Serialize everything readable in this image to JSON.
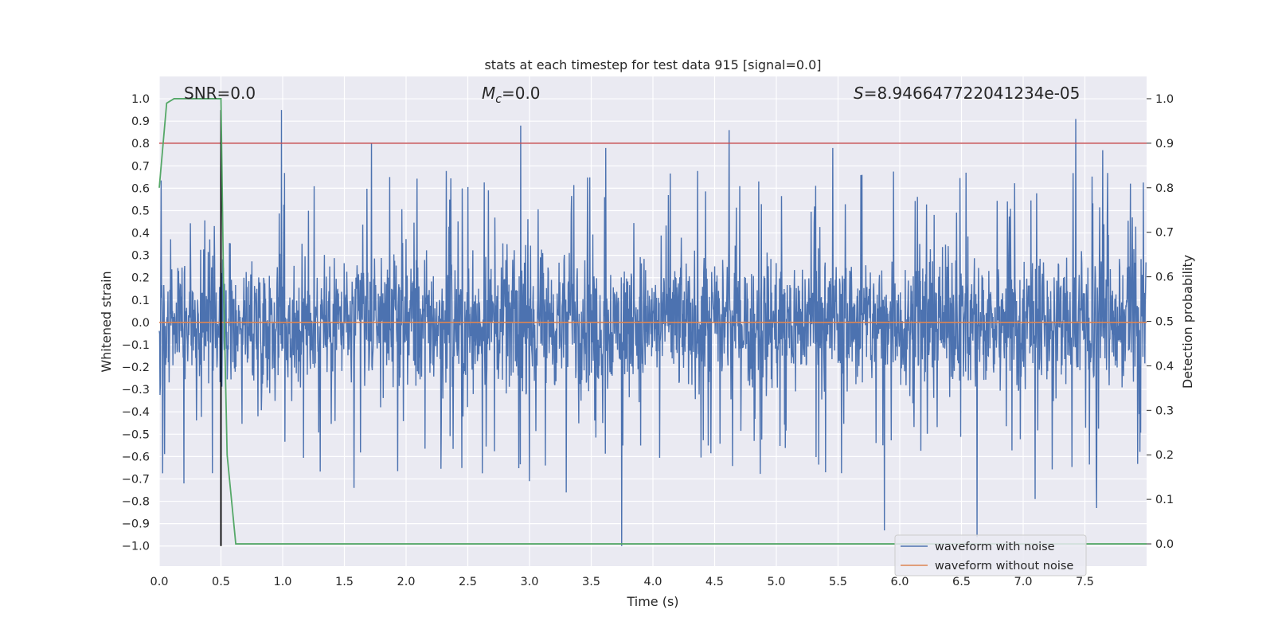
{
  "chart_data": {
    "type": "line",
    "title": "stats at each timestep for test data 915 [signal=0.0]",
    "xlabel": "Time (s)",
    "ylabel": "Whitened strain",
    "y2label": "Detection probability",
    "xlim": [
      0.0,
      8.0
    ],
    "ylim": [
      -1.09,
      1.1
    ],
    "y2lim": [
      -0.05,
      1.05
    ],
    "xticks": [
      "0.0",
      "0.5",
      "1.0",
      "1.5",
      "2.0",
      "2.5",
      "3.0",
      "3.5",
      "4.0",
      "4.5",
      "5.0",
      "5.5",
      "6.0",
      "6.5",
      "7.0",
      "7.5"
    ],
    "yticks": [
      "−1.0",
      "−0.9",
      "−0.8",
      "−0.7",
      "−0.6",
      "−0.5",
      "−0.4",
      "−0.3",
      "−0.2",
      "−0.1",
      "0.0",
      "0.1",
      "0.2",
      "0.3",
      "0.4",
      "0.5",
      "0.6",
      "0.7",
      "0.8",
      "0.9",
      "1.0"
    ],
    "y2ticks": [
      "0.0",
      "0.1",
      "0.2",
      "0.3",
      "0.4",
      "0.5",
      "0.6",
      "0.7",
      "0.8",
      "0.9",
      "1.0"
    ],
    "grid": true,
    "legend_position": "lower right",
    "annotations": {
      "snr": "SNR=0.0",
      "mc_symbol": "M",
      "mc_sub": "c",
      "mc_value": "=0.0",
      "s_symbol": "S",
      "s_value": "=8.946647722041234e-05"
    },
    "series": [
      {
        "name": "waveform with noise",
        "color": "#4c72b0",
        "description": "noise-like whitened strain, mostly within ±0.45 with spikes",
        "base_amplitude": 0.38,
        "spikes": [
          {
            "x": 0.99,
            "y": 0.95
          },
          {
            "x": 1.72,
            "y": 0.8
          },
          {
            "x": 2.93,
            "y": 0.88
          },
          {
            "x": 3.62,
            "y": 0.78
          },
          {
            "x": 4.62,
            "y": 0.86
          },
          {
            "x": 5.46,
            "y": 0.78
          },
          {
            "x": 7.43,
            "y": 0.91
          },
          {
            "x": 7.65,
            "y": 0.77
          },
          {
            "x": 0.2,
            "y": -0.72
          },
          {
            "x": 1.58,
            "y": -0.74
          },
          {
            "x": 3.0,
            "y": -0.71
          },
          {
            "x": 3.3,
            "y": -0.76
          },
          {
            "x": 3.75,
            "y": -1.0
          },
          {
            "x": 5.88,
            "y": -0.93
          },
          {
            "x": 6.63,
            "y": -0.96
          },
          {
            "x": 7.1,
            "y": -0.79
          },
          {
            "x": 7.6,
            "y": -0.83
          }
        ]
      },
      {
        "name": "waveform without noise",
        "color": "#dd8452",
        "x": [
          0.0,
          8.0
        ],
        "y": [
          0.0,
          0.0
        ]
      },
      {
        "name": "",
        "color": "#55a868",
        "axis": "right",
        "x": [
          0.0,
          0.06,
          0.12,
          0.5,
          0.52,
          0.55,
          0.62,
          8.0
        ],
        "y": [
          0.8,
          0.99,
          1.0,
          1.0,
          0.6,
          0.2,
          0.0,
          0.0
        ]
      }
    ],
    "threshold_line": {
      "y": 0.9,
      "axis": "right",
      "color": "#c44e52"
    },
    "marker_line": {
      "x": 0.5,
      "y_from": -1.0,
      "y_to": 0.95,
      "color": "#000000"
    }
  }
}
